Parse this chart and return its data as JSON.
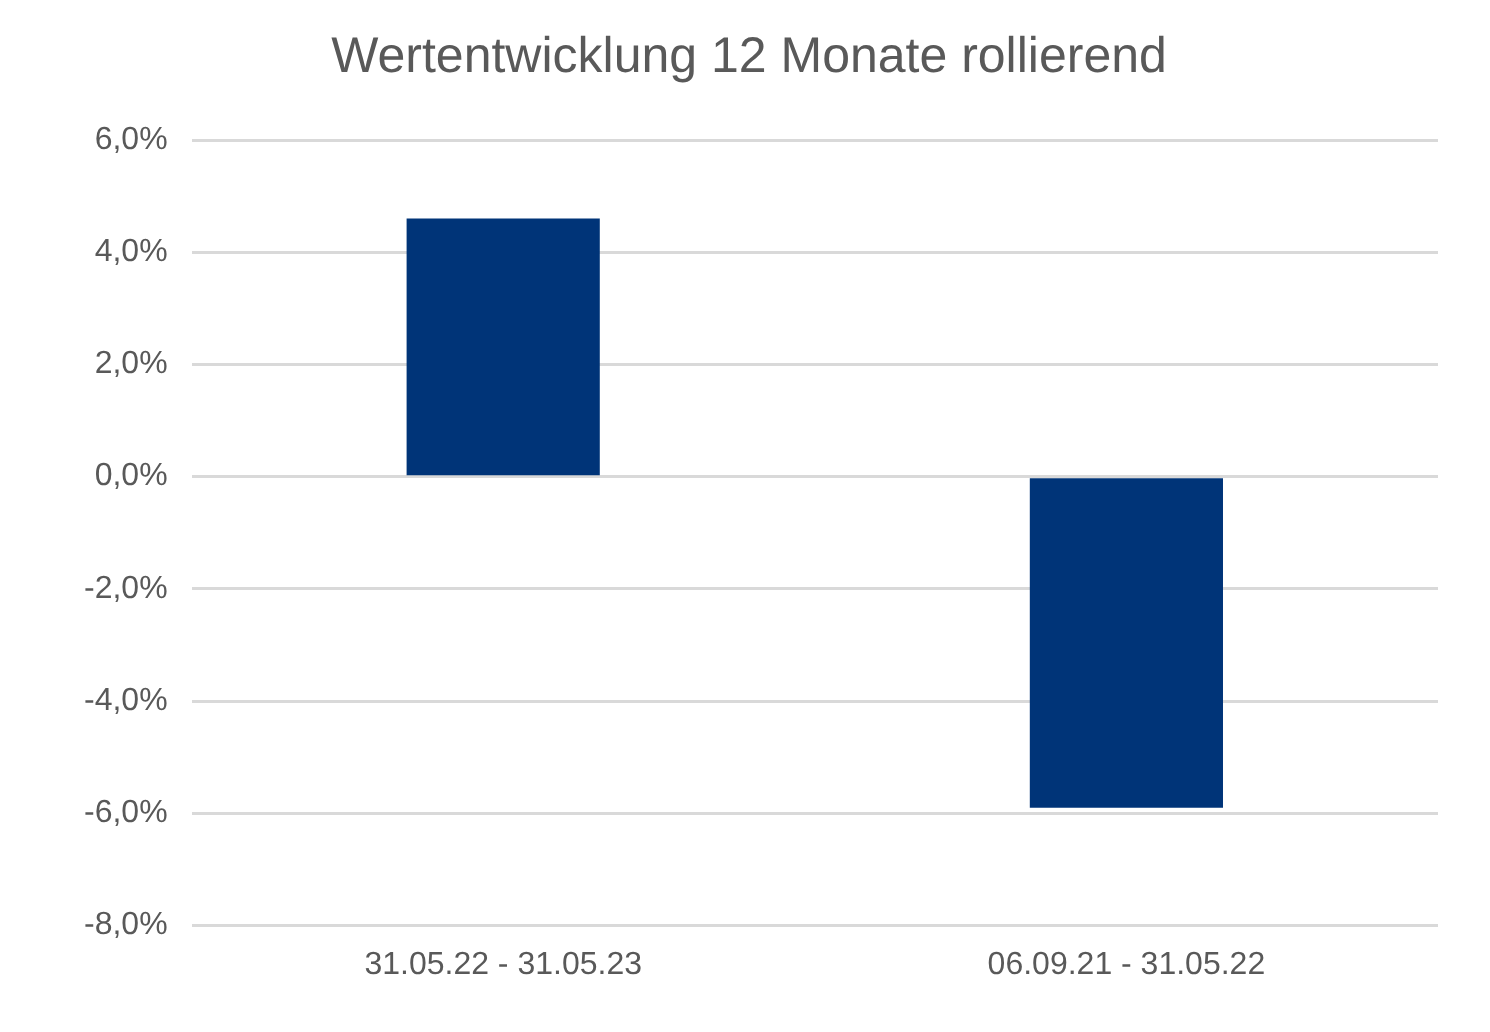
{
  "chart_data": {
    "type": "bar",
    "title": "Wertentwicklung 12 Monate rollierend",
    "categories": [
      "31.05.22 - 31.05.23",
      "06.09.21 - 31.05.22"
    ],
    "values": [
      4.6,
      -5.9
    ],
    "color": "#003478",
    "ylim": [
      -8,
      6
    ],
    "yticks": [
      {
        "value": -8,
        "label": "-8,0%"
      },
      {
        "value": -6,
        "label": "-6,0%"
      },
      {
        "value": -4,
        "label": "-4,0%"
      },
      {
        "value": -2,
        "label": "-2,0%"
      },
      {
        "value": 0,
        "label": "0,0%"
      },
      {
        "value": 2,
        "label": "2,0%"
      },
      {
        "value": 4,
        "label": "4,0%"
      },
      {
        "value": 6,
        "label": "6,0%"
      }
    ],
    "grid": "y"
  }
}
